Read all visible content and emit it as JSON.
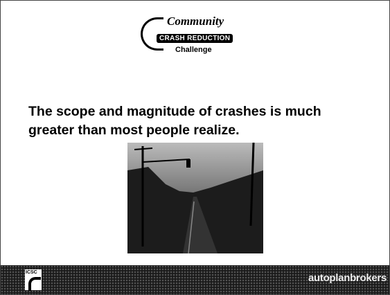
{
  "header": {
    "logo_script": "Community",
    "logo_banner": "CRASH REDUCTION",
    "logo_sub": "Challenge"
  },
  "body": {
    "text": "The scope and magnitude of crashes is much greater than most people realize."
  },
  "footer": {
    "left_logo": "ICSC",
    "right_logo": "autoplanbrokers"
  }
}
